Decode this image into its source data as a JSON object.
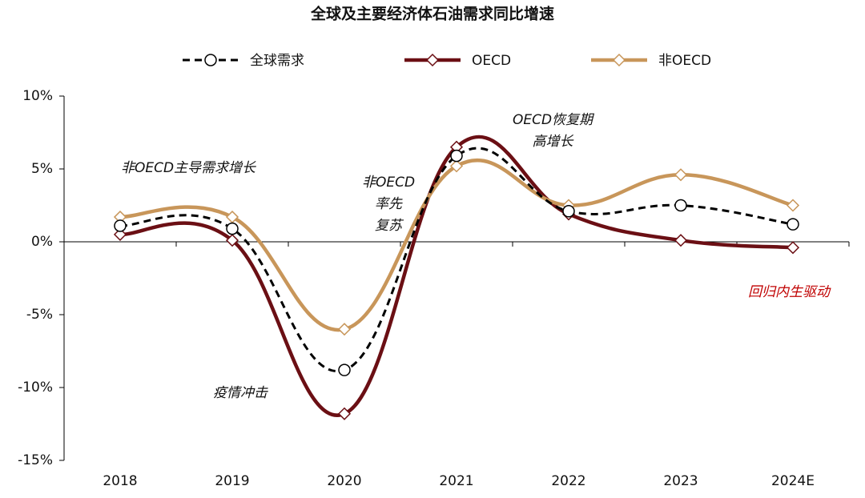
{
  "chart_data": {
    "type": "line",
    "title": "全球及主要经济体石油需求同比增速",
    "categories": [
      "2018",
      "2019",
      "2020",
      "2021",
      "2022",
      "2023",
      "2024E"
    ],
    "series": [
      {
        "name": "全球需求",
        "color": "#000000",
        "dashed": true,
        "marker": "circle",
        "values": [
          1.1,
          0.9,
          -8.8,
          5.9,
          2.1,
          2.5,
          1.2
        ]
      },
      {
        "name": "OECD",
        "color": "#6b0f14",
        "dashed": false,
        "marker": "diamond",
        "values": [
          0.5,
          0.1,
          -11.8,
          6.5,
          1.9,
          0.1,
          -0.4
        ]
      },
      {
        "name": "非OECD",
        "color": "#c8965a",
        "dashed": false,
        "marker": "diamond",
        "values": [
          1.7,
          1.7,
          -6.0,
          5.2,
          2.5,
          4.6,
          2.5
        ]
      }
    ],
    "ylim": [
      -15,
      10
    ],
    "yticks": [
      {
        "value": -15,
        "label": "-15%"
      },
      {
        "value": -10,
        "label": "-10%"
      },
      {
        "value": -5,
        "label": "-5%"
      },
      {
        "value": 0,
        "label": "0%"
      },
      {
        "value": 5,
        "label": "5%"
      },
      {
        "value": 10,
        "label": "10%"
      }
    ],
    "annotations": [
      [
        "非OECD主导需求增长"
      ],
      [
        "非OECD",
        "率先",
        "复苏"
      ],
      [
        "疫情冲击"
      ],
      [
        "OECD恢复期",
        "高增长"
      ],
      [
        "回归内生驱动"
      ]
    ]
  }
}
